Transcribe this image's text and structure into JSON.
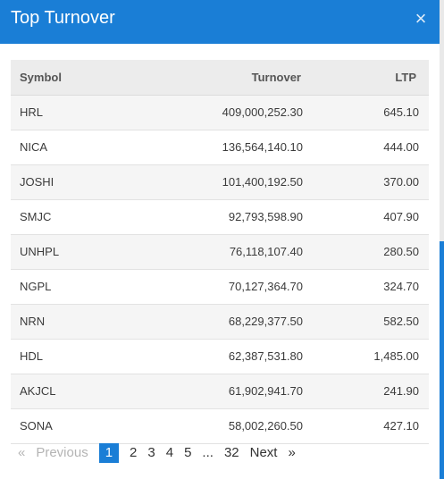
{
  "modal": {
    "title": "Top Turnover",
    "close_label": "×"
  },
  "table": {
    "headers": {
      "symbol": "Symbol",
      "turnover": "Turnover",
      "ltp": "LTP"
    },
    "rows": [
      {
        "symbol": "HRL",
        "turnover": "409,000,252.30",
        "ltp": "645.10"
      },
      {
        "symbol": "NICA",
        "turnover": "136,564,140.10",
        "ltp": "444.00"
      },
      {
        "symbol": "JOSHI",
        "turnover": "101,400,192.50",
        "ltp": "370.00"
      },
      {
        "symbol": "SMJC",
        "turnover": "92,793,598.90",
        "ltp": "407.90"
      },
      {
        "symbol": "UNHPL",
        "turnover": "76,118,107.40",
        "ltp": "280.50"
      },
      {
        "symbol": "NGPL",
        "turnover": "70,127,364.70",
        "ltp": "324.70"
      },
      {
        "symbol": "NRN",
        "turnover": "68,229,377.50",
        "ltp": "582.50"
      },
      {
        "symbol": "HDL",
        "turnover": "62,387,531.80",
        "ltp": "1,485.00"
      },
      {
        "symbol": "AKJCL",
        "turnover": "61,902,941.70",
        "ltp": "241.90"
      },
      {
        "symbol": "SONA",
        "turnover": "58,002,260.50",
        "ltp": "427.10"
      }
    ]
  },
  "pagination": {
    "prev_icon": "«",
    "prev_label": "Previous",
    "pages": [
      "1",
      "2",
      "3",
      "4",
      "5"
    ],
    "ellipsis": "...",
    "last_page": "32",
    "next_label": "Next",
    "next_icon": "»",
    "current_page": "1"
  },
  "colors": {
    "header_bg": "#1a7ed6",
    "active_page_bg": "#1a7ed6"
  }
}
